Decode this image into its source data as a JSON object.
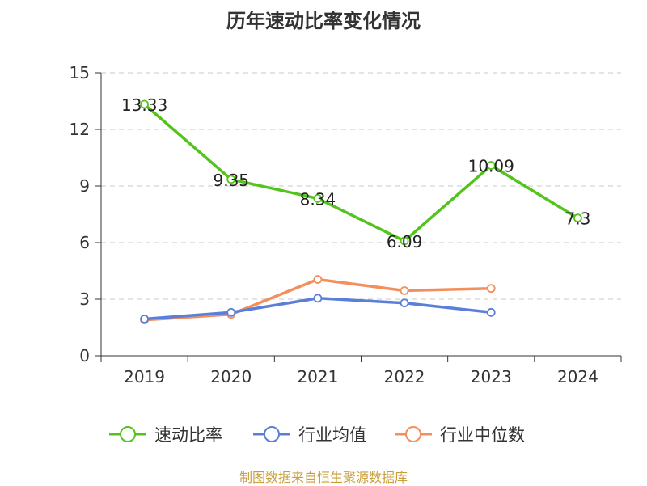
{
  "chart_data": {
    "type": "line",
    "title": "历年速动比率变化情况",
    "categories": [
      "2019",
      "2020",
      "2021",
      "2022",
      "2023",
      "2024"
    ],
    "ylim": [
      0,
      15
    ],
    "yticks": [
      0,
      3,
      6,
      9,
      12,
      15
    ],
    "grid": true,
    "legend_position": "bottom",
    "series": [
      {
        "name": "速动比率",
        "color": "#52c41a",
        "values": [
          13.33,
          9.35,
          8.34,
          6.09,
          10.09,
          7.3
        ],
        "show_labels": true
      },
      {
        "name": "行业均值",
        "color": "#5b7fd8",
        "values": [
          1.95,
          2.3,
          3.05,
          2.8,
          2.3,
          null
        ],
        "show_labels": false
      },
      {
        "name": "行业中位数",
        "color": "#f28f5c",
        "values": [
          1.9,
          2.2,
          4.05,
          3.45,
          3.57,
          null
        ],
        "show_labels": false
      }
    ]
  },
  "source": "制图数据来自恒生聚源数据库"
}
